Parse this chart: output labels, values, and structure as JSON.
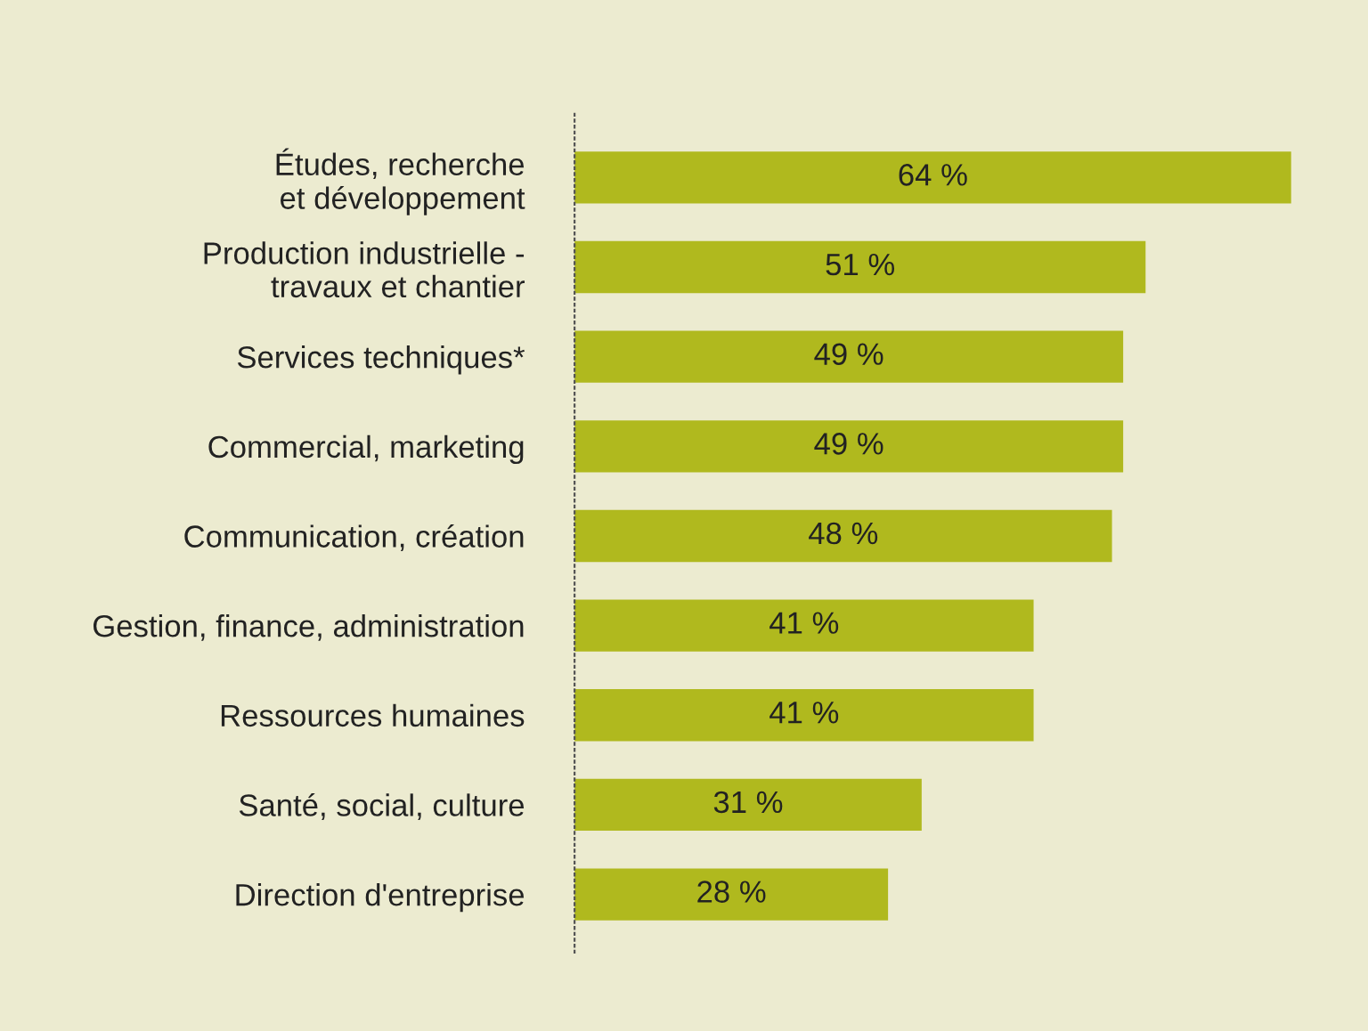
{
  "chart_data": {
    "type": "bar",
    "orientation": "horizontal",
    "categories": [
      "Études, recherche\net développement",
      "Production industrielle -\ntravaux et chantier",
      "Services techniques*",
      "Commercial, marketing",
      "Communication, création",
      "Gestion, finance, administration",
      "Ressources humaines",
      "Santé, social, culture",
      "Direction d'entreprise"
    ],
    "values": [
      64,
      51,
      49,
      49,
      48,
      41,
      41,
      31,
      28
    ],
    "value_labels": [
      "64 %",
      "51 %",
      "49 %",
      "49 %",
      "48 %",
      "41 %",
      "41 %",
      "31 %",
      "28 %"
    ],
    "color": "#b0b91e",
    "tick_labels": "y",
    "grid": false,
    "legend": false
  }
}
